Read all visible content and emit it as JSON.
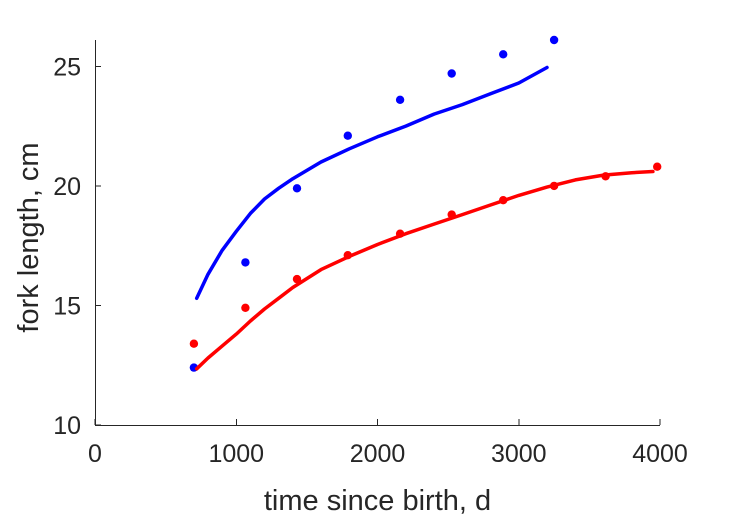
{
  "chart_data": {
    "type": "scatter",
    "xlabel": "time since birth, d",
    "ylabel": "fork length, cm",
    "xlim": [
      0,
      4000
    ],
    "ylim": [
      10,
      26.1
    ],
    "x_ticks": [
      0,
      1000,
      2000,
      3000,
      4000
    ],
    "y_ticks": [
      10,
      15,
      20,
      25
    ],
    "x_tick_labels": [
      "0",
      "1000",
      "2000",
      "3000",
      "4000"
    ],
    "y_tick_labels": [
      "10",
      "15",
      "20",
      "25"
    ],
    "grid": false,
    "series": [
      {
        "color": "#0000ff",
        "points": {
          "x": [
            700,
            1065,
            1430,
            1790,
            2160,
            2525,
            2890,
            3250
          ],
          "y": [
            12.4,
            16.8,
            19.9,
            22.1,
            23.6,
            24.7,
            25.5,
            26.1
          ]
        },
        "fit": {
          "x": [
            720,
            800,
            900,
            1000,
            1100,
            1200,
            1300,
            1400,
            1600,
            1800,
            2000,
            2200,
            2400,
            2600,
            2800,
            3000,
            3200
          ],
          "y": [
            15.3,
            16.3,
            17.3,
            18.1,
            18.85,
            19.45,
            19.9,
            20.3,
            21.0,
            21.55,
            22.05,
            22.5,
            23.0,
            23.4,
            23.85,
            24.3,
            24.95
          ]
        }
      },
      {
        "color": "#ff0000",
        "points": {
          "x": [
            700,
            1065,
            1430,
            1790,
            2160,
            2525,
            2890,
            3250,
            3615,
            3980
          ],
          "y": [
            13.4,
            14.9,
            16.1,
            17.1,
            18.0,
            18.8,
            19.4,
            20.0,
            20.4,
            20.8
          ]
        },
        "fit": {
          "x": [
            720,
            800,
            900,
            1000,
            1100,
            1200,
            1300,
            1400,
            1600,
            1800,
            2000,
            2200,
            2400,
            2600,
            2800,
            3000,
            3200,
            3400,
            3600,
            3800,
            3950
          ],
          "y": [
            12.35,
            12.8,
            13.3,
            13.8,
            14.35,
            14.85,
            15.3,
            15.75,
            16.5,
            17.05,
            17.55,
            18.0,
            18.4,
            18.8,
            19.2,
            19.6,
            19.95,
            20.25,
            20.45,
            20.55,
            20.6
          ]
        }
      }
    ]
  }
}
